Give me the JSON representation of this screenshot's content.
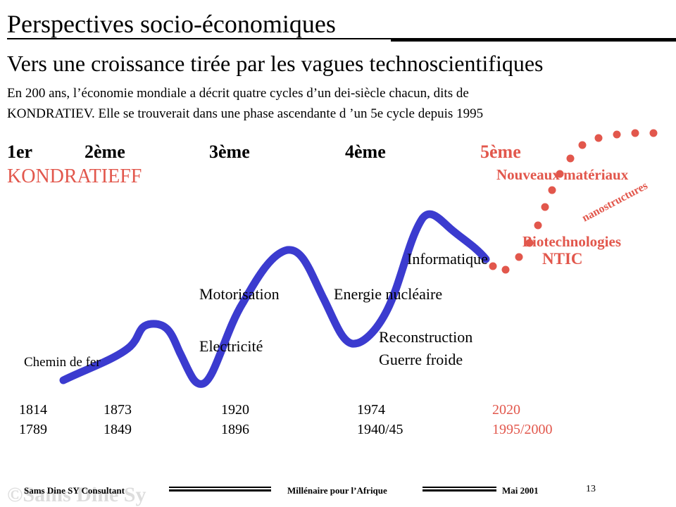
{
  "header": {
    "title": "Perspectives socio-économiques",
    "subtitle": "Vers une croissance tirée par les vagues technoscientifiques",
    "intro_line1": "En 200 ans, l’économie mondiale a décrit quatre cycles d’un dei-siècle chacun, dits de",
    "intro_line2": "KONDRATIEV.  Elle se trouverait dans une phase ascendante d ’un 5e cycle depuis 1995"
  },
  "waves": {
    "w1": "1er",
    "w2": "2ème",
    "w3": "3ème",
    "w4": "4ème",
    "w5": "5ème",
    "kondratieff": "KONDRATIEFF"
  },
  "annotations": {
    "chemin": "Chemin de fer",
    "electricite": "Electricité",
    "motorisation": "Motorisation",
    "energie": "Energie nucléaire",
    "reconstruction": "Reconstruction",
    "guerre": "Guerre froide",
    "informatique": "Informatique",
    "ntic": "NTIC",
    "biotech": "Biotechnologies",
    "nanostructures": "nanostructures",
    "materiaux": "Nouveaux matériaux"
  },
  "years": [
    {
      "top": "1814",
      "bottom": "1789"
    },
    {
      "top": "1873",
      "bottom": "1849"
    },
    {
      "top": "1920",
      "bottom": "1896"
    },
    {
      "top": "1974",
      "bottom": "1940/45"
    },
    {
      "top": "2020",
      "bottom": "1995/2000"
    }
  ],
  "footer": {
    "left": "Sams Dine SY Consultant",
    "center": "Millénaire pour l’Afrique",
    "date": "Mai 2001",
    "page": "13",
    "watermark": "©Sams Dine Sy"
  },
  "colors": {
    "curve": "#3B3BCF",
    "accent": "#E2574C"
  }
}
